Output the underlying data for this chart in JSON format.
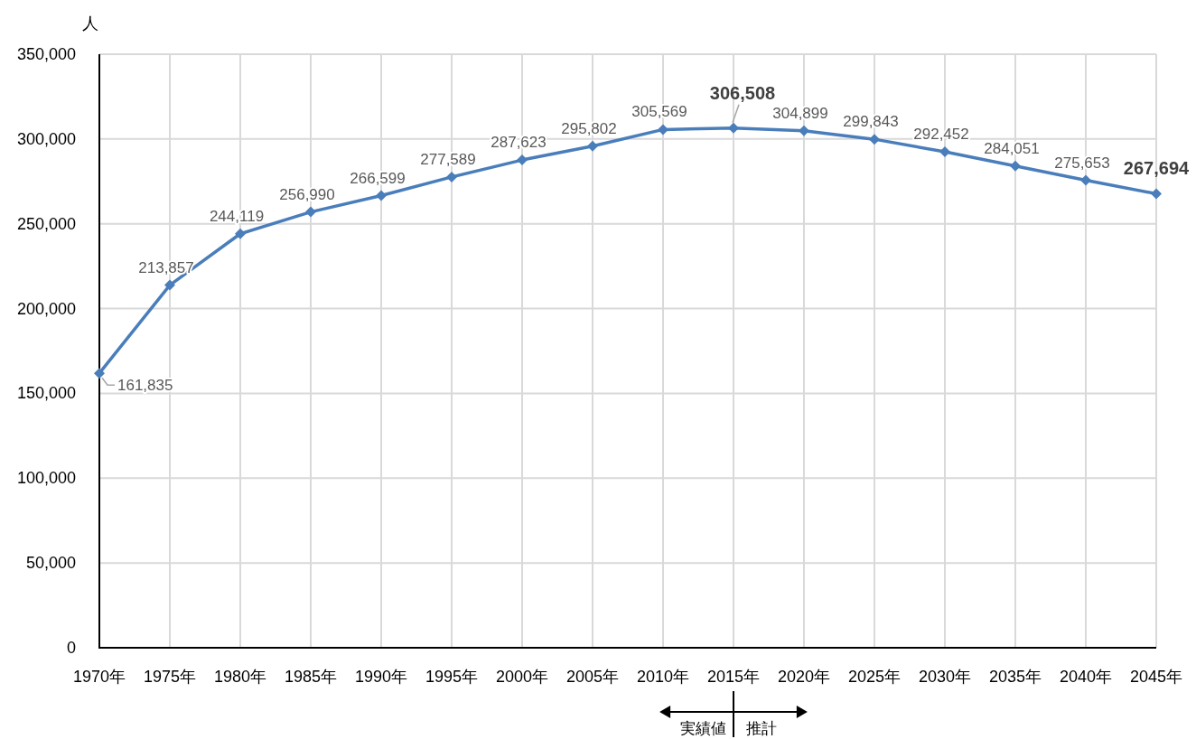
{
  "chart_data": {
    "type": "line",
    "ylabel": "人",
    "categories": [
      "1970年",
      "1975年",
      "1980年",
      "1985年",
      "1990年",
      "1995年",
      "2000年",
      "2005年",
      "2010年",
      "2015年",
      "2020年",
      "2025年",
      "2030年",
      "2035年",
      "2040年",
      "2045年"
    ],
    "series": [
      {
        "color": "#4a7ebb",
        "values": [
          161835,
          213857,
          244119,
          256990,
          266599,
          277589,
          287623,
          295802,
          305569,
          306508,
          304899,
          299843,
          292452,
          284051,
          275653,
          267694
        ],
        "value_labels": [
          "161,835",
          "213,857",
          "244,119",
          "256,990",
          "266,599",
          "277,589",
          "287,623",
          "295,802",
          "305,569",
          null,
          "304,899",
          "299,843",
          "292,452",
          "284,051",
          "275,653",
          null
        ]
      }
    ],
    "ylim": [
      0,
      350000
    ],
    "yticks": [
      0,
      {
        "value": 50000,
        "label": "50,000"
      },
      {
        "value": 100000,
        "label": "100,000"
      },
      {
        "value": 150000,
        "label": "150,000"
      },
      {
        "value": 200000,
        "label": "200,000"
      },
      {
        "value": 250000,
        "label": "250,000"
      },
      {
        "value": 300000,
        "label": "300,000"
      },
      {
        "value": 350000,
        "label": "350,000"
      }
    ],
    "grid": true,
    "marker": "diamond",
    "line_style": "solid",
    "annotations": [
      {
        "text": "306,508",
        "x": "2015年",
        "y": 306508
      },
      {
        "text": "267,694",
        "x": "2045年",
        "y": 267694
      },
      "実績値",
      "推計"
    ]
  }
}
